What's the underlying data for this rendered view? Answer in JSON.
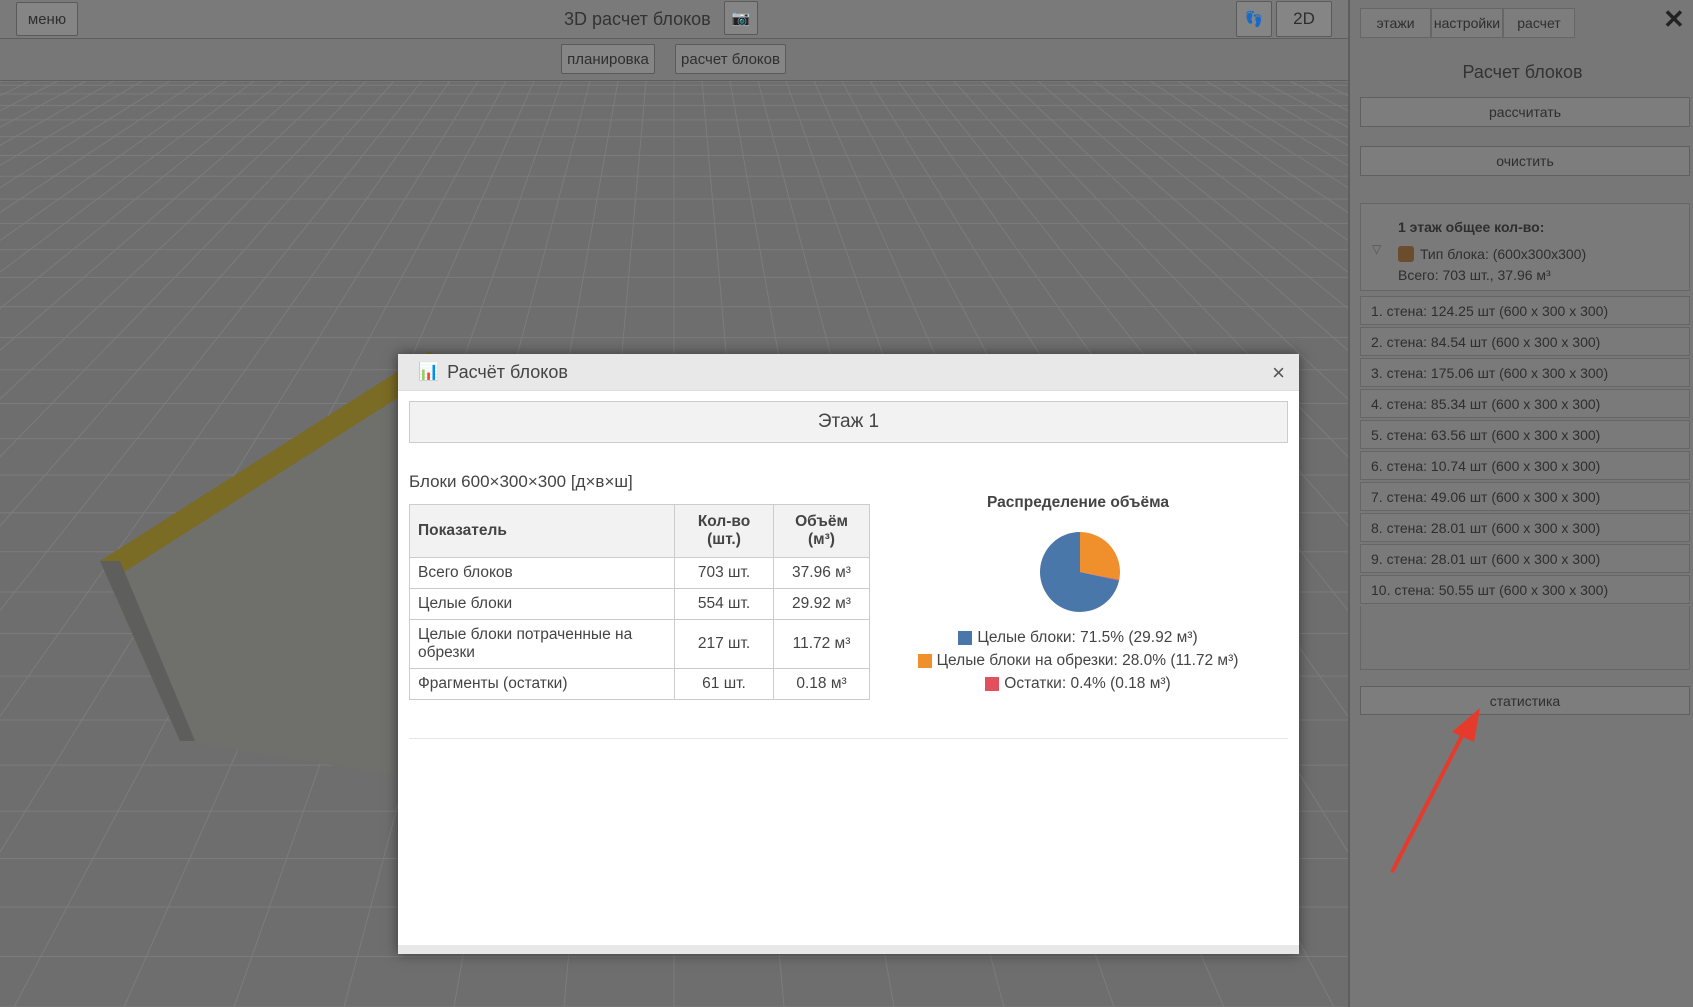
{
  "toolbar": {
    "menu": "меню",
    "title": "3D расчет блоков",
    "camera_icon": "camera-icon",
    "walk_icon": "footprints-icon",
    "mode_2d": "2D",
    "planning": "планировка",
    "block_calc": "расчет блоков"
  },
  "panel": {
    "tabs": [
      "этажи",
      "настройки",
      "расчет"
    ],
    "close": "✕",
    "title": "Расчет блоков",
    "calculate": "рассчитать",
    "clear": "очистить",
    "summary": {
      "heading": "1 этаж общее кол-во:",
      "type": "Тип блока: (600x300x300)",
      "total": "Всего: 703 шт., 37.96 м³"
    },
    "walls": [
      "1. стена: 124.25 шт (600 x 300 x 300)",
      "2. стена: 84.54 шт (600 x 300 x 300)",
      "3. стена: 175.06 шт (600 x 300 x 300)",
      "4. стена: 85.34 шт (600 x 300 x 300)",
      "5. стена: 63.56 шт (600 x 300 x 300)",
      "6. стена: 10.74 шт (600 x 300 x 300)",
      "7. стена: 49.06 шт (600 x 300 x 300)",
      "8. стена: 28.01 шт (600 x 300 x 300)",
      "9. стена: 28.01 шт (600 x 300 x 300)",
      "10. стена: 50.55 шт (600 x 300 x 300)"
    ],
    "statistics": "статистика"
  },
  "modal": {
    "title": "Расчёт блоков",
    "close": "×",
    "floor": "Этаж 1",
    "subtitle": "Блоки 600×300×300 [д×в×ш]",
    "table": {
      "headers": [
        "Показатель",
        "Кол-во (шт.)",
        "Объём (м³)"
      ],
      "rows": [
        [
          "Всего блоков",
          "703 шт.",
          "37.96 м³"
        ],
        [
          "Целые блоки",
          "554 шт.",
          "29.92 м³"
        ],
        [
          "Целые блоки потраченные на обрезки",
          "217 шт.",
          "11.72 м³"
        ],
        [
          "Фрагменты (остатки)",
          "61 шт.",
          "0.18 м³"
        ]
      ]
    }
  },
  "chart_data": {
    "type": "pie",
    "title": "Распределение объёма",
    "slices": [
      {
        "label": "Целые блоки: 71.5% (29.92 м³)",
        "value": 71.5,
        "color": "#4a77aa"
      },
      {
        "label": "Целые блоки на обрезки: 28.0% (11.72 м³)",
        "value": 28.0,
        "color": "#f0902c"
      },
      {
        "label": "Остатки: 0.4% (0.18 м³)",
        "value": 0.4,
        "color": "#e2505e"
      }
    ]
  }
}
